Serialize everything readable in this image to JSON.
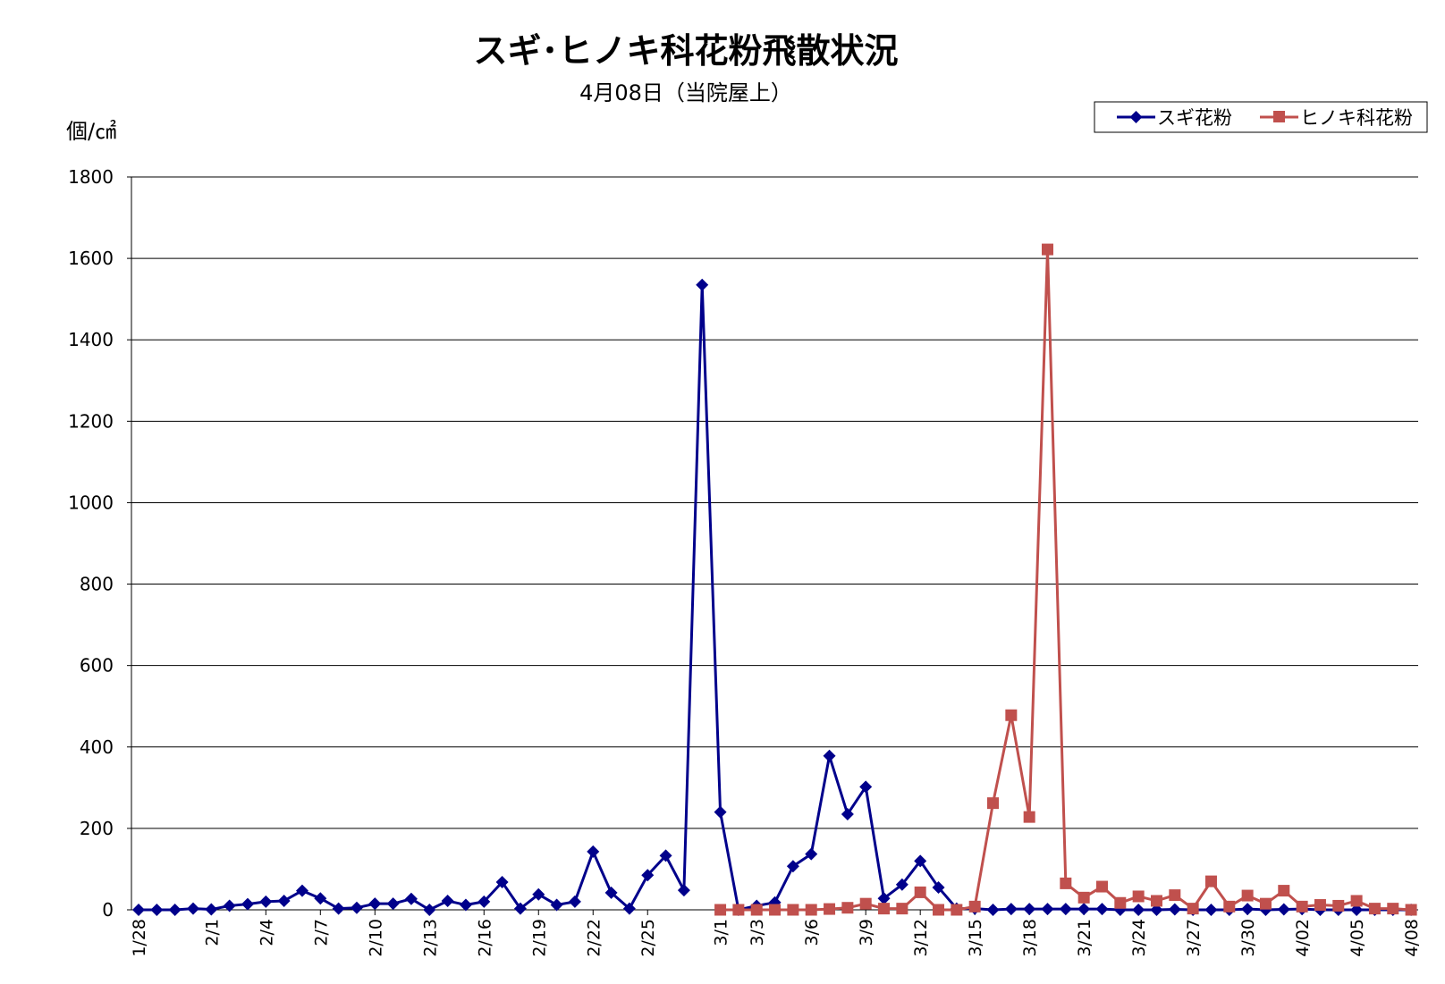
{
  "chart_data": {
    "type": "line",
    "title": "スギ･ヒノキ科花粉飛散状況",
    "subtitle": "4月08日（当院屋上）",
    "ylabel": "個/㎠",
    "xlabel": "",
    "ylim": [
      0,
      1800
    ],
    "yticks": [
      0,
      200,
      400,
      600,
      800,
      1000,
      1200,
      1400,
      1600,
      1800
    ],
    "grid": true,
    "legend_position": "top-right",
    "categories": [
      "1/28",
      "1/29",
      "1/30",
      "1/31",
      "2/1",
      "2/2",
      "2/3",
      "2/4",
      "2/5",
      "2/6",
      "2/7",
      "2/8",
      "2/9",
      "2/10",
      "2/11",
      "2/12",
      "2/13",
      "2/14",
      "2/15",
      "2/16",
      "2/17",
      "2/18",
      "2/19",
      "2/20",
      "2/21",
      "2/22",
      "2/23",
      "2/24",
      "2/25",
      "2/26",
      "2/27",
      "2/28",
      "3/1",
      "3/2",
      "3/3",
      "3/4",
      "3/5",
      "3/6",
      "3/7",
      "3/8",
      "3/9",
      "3/10",
      "3/11",
      "3/12",
      "3/13",
      "3/14",
      "3/15",
      "3/16",
      "3/17",
      "3/18",
      "3/19",
      "3/20",
      "3/21",
      "3/22",
      "3/23",
      "3/24",
      "3/25",
      "3/26",
      "3/27",
      "3/28",
      "3/29",
      "3/30",
      "3/31",
      "4/01",
      "4/02",
      "4/03",
      "4/04",
      "4/05",
      "4/06",
      "4/07",
      "4/08"
    ],
    "tick_labels": [
      {
        "index": 0,
        "label": "1/28"
      },
      {
        "index": 4,
        "label": "2/1"
      },
      {
        "index": 7,
        "label": "2/4"
      },
      {
        "index": 10,
        "label": "2/7"
      },
      {
        "index": 13,
        "label": "2/10"
      },
      {
        "index": 16,
        "label": "2/13"
      },
      {
        "index": 19,
        "label": "2/16"
      },
      {
        "index": 22,
        "label": "2/19"
      },
      {
        "index": 25,
        "label": "2/22"
      },
      {
        "index": 28,
        "label": "2/25"
      },
      {
        "index": 32,
        "label": "3/1"
      },
      {
        "index": 34,
        "label": "3/3"
      },
      {
        "index": 37,
        "label": "3/6"
      },
      {
        "index": 40,
        "label": "3/9"
      },
      {
        "index": 43,
        "label": "3/12"
      },
      {
        "index": 46,
        "label": "3/15"
      },
      {
        "index": 49,
        "label": "3/18"
      },
      {
        "index": 52,
        "label": "3/21"
      },
      {
        "index": 55,
        "label": "3/24"
      },
      {
        "index": 58,
        "label": "3/27"
      },
      {
        "index": 61,
        "label": "3/30"
      },
      {
        "index": 64,
        "label": "4/02"
      },
      {
        "index": 67,
        "label": "4/05"
      },
      {
        "index": 70,
        "label": "4/08"
      }
    ],
    "series": [
      {
        "name": "スギ花粉",
        "color": "#00008B",
        "marker": "diamond",
        "values": [
          0,
          0,
          0,
          3,
          1,
          10,
          14,
          20,
          22,
          47,
          28,
          3,
          5,
          15,
          15,
          27,
          0,
          22,
          12,
          20,
          68,
          3,
          38,
          12,
          20,
          143,
          42,
          3,
          85,
          133,
          48,
          1535,
          240,
          0,
          10,
          18,
          107,
          137,
          378,
          235,
          302,
          28,
          62,
          120,
          55,
          3,
          3,
          0,
          2,
          2,
          2,
          2,
          2,
          2,
          0,
          0,
          0,
          1,
          0,
          0,
          0,
          2,
          0,
          1,
          2,
          0,
          0,
          0,
          0,
          0,
          0
        ]
      },
      {
        "name": "ヒノキ科花粉",
        "color": "#C0504D",
        "marker": "square",
        "values": [
          null,
          null,
          null,
          null,
          null,
          null,
          null,
          null,
          null,
          null,
          null,
          null,
          null,
          null,
          null,
          null,
          null,
          null,
          null,
          null,
          null,
          null,
          null,
          null,
          null,
          null,
          null,
          null,
          null,
          null,
          null,
          null,
          0,
          0,
          0,
          0,
          0,
          0,
          2,
          5,
          15,
          3,
          3,
          43,
          0,
          0,
          8,
          262,
          478,
          228,
          1622,
          65,
          30,
          57,
          17,
          33,
          22,
          36,
          3,
          70,
          8,
          35,
          15,
          47,
          8,
          12,
          10,
          22,
          3,
          3,
          0
        ]
      }
    ]
  }
}
